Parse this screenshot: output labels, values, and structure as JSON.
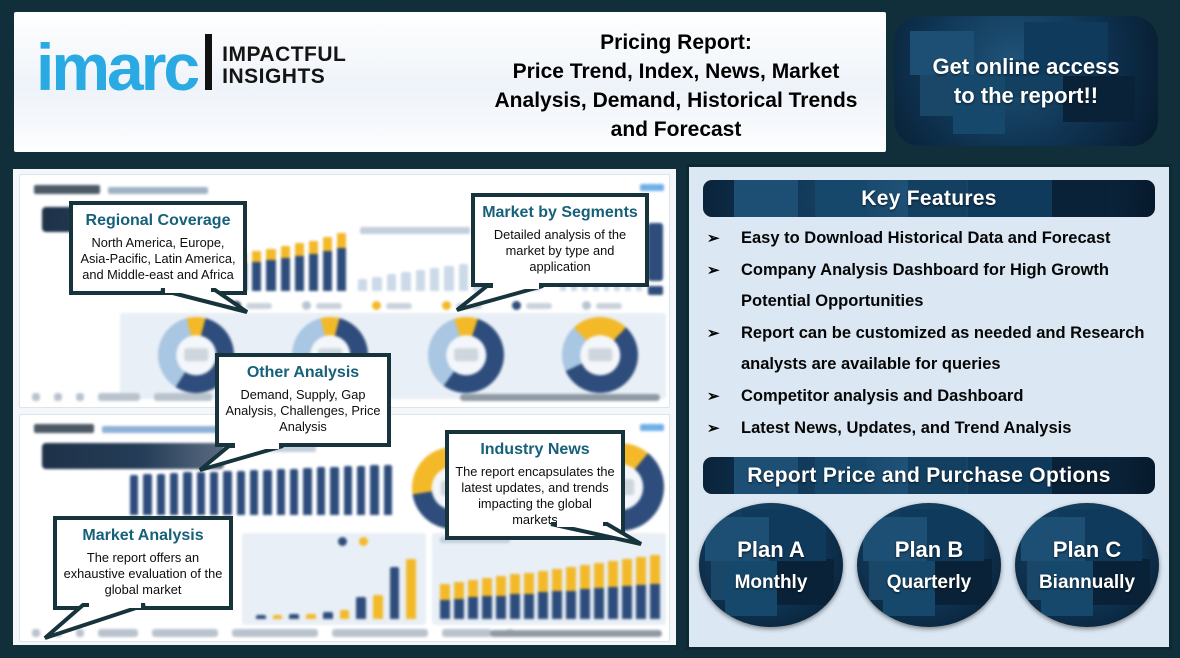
{
  "header": {
    "logo": {
      "brand": "imarc",
      "tagline_line1": "IMPACTFUL",
      "tagline_line2": "INSIGHTS"
    },
    "title_line1": "Pricing Report:",
    "title_rest": "Price Trend, Index, News, Market Analysis, Demand, Historical Trends and Forecast",
    "cta": "Get online access to the report!!"
  },
  "callouts": [
    {
      "title": "Regional Coverage",
      "body": "North America, Europe, Asia-Pacific, Latin America, and Middle-east and Africa"
    },
    {
      "title": "Market by Segments",
      "body": "Detailed analysis of the market by type and application"
    },
    {
      "title": "Other Analysis",
      "body": "Demand, Supply, Gap Analysis, Challenges, Price Analysis"
    },
    {
      "title": "Industry News",
      "body": "The report encapsulates the latest updates, and trends impacting the global markets"
    },
    {
      "title": "Market Analysis",
      "body": "The report offers an exhaustive evaluation of the global market"
    }
  ],
  "key_features": {
    "title": "Key Features",
    "bullet": "➢",
    "items": [
      "Easy to Download Historical Data and Forecast",
      "Company Analysis Dashboard for High Growth Potential Opportunities",
      "Report can be customized as needed and Research analysts are available for queries",
      "Competitor analysis and Dashboard",
      "Latest News, Updates, and Trend Analysis"
    ]
  },
  "purchase": {
    "title": "Report Price and Purchase Options",
    "plans": [
      {
        "name": "Plan A",
        "period": "Monthly"
      },
      {
        "name": "Plan B",
        "period": "Quarterly"
      },
      {
        "name": "Plan C",
        "period": "Biannually"
      }
    ]
  },
  "colors": {
    "accent_blue": "#29aae2",
    "navy": "#2e4d7c",
    "yellow": "#f3b929",
    "light_blue": "#a9c6e2",
    "teal_heading": "#17607a",
    "frame": "#112f3a",
    "panel_bg": "#dbe7f3"
  },
  "dashboards": {
    "top": {
      "chart1_heights": [
        46,
        50,
        54,
        57,
        60,
        64,
        68,
        72,
        76,
        82,
        88
      ],
      "chart2_heights": [
        28,
        34,
        40,
        45,
        50,
        55,
        60,
        64,
        68,
        73,
        78,
        84,
        90
      ],
      "chart3_heights": [
        30,
        38,
        46,
        54,
        62,
        70,
        78,
        86
      ],
      "donuts": [
        {
          "yellow": 8,
          "navy": 55,
          "lightblue": 37
        },
        {
          "yellow": 8,
          "navy": 57,
          "lightblue": 35
        },
        {
          "yellow": 10,
          "navy": 55,
          "lightblue": 35
        },
        {
          "yellow": 24,
          "navy": 56,
          "lightblue": 20
        }
      ],
      "donuts_label": ""
    },
    "bottom": {
      "chart1_heights": [
        72,
        73,
        74,
        75,
        76,
        76,
        77,
        78,
        79,
        80,
        81,
        82,
        83,
        84,
        85,
        86,
        87,
        88,
        89,
        90
      ],
      "chart2_pairs": [
        6,
        6,
        7,
        7,
        10,
        12,
        30,
        34,
        72,
        84
      ],
      "chart3_heights": [
        50,
        53,
        56,
        59,
        61,
        64,
        66,
        69,
        72,
        74,
        77,
        80,
        83,
        86,
        89,
        92
      ],
      "donut_left": {
        "yellow": 55,
        "navy": 45,
        "lightblue": 0
      },
      "donut_right": {
        "yellow": 22,
        "navy": 78,
        "lightblue": 0
      }
    }
  }
}
